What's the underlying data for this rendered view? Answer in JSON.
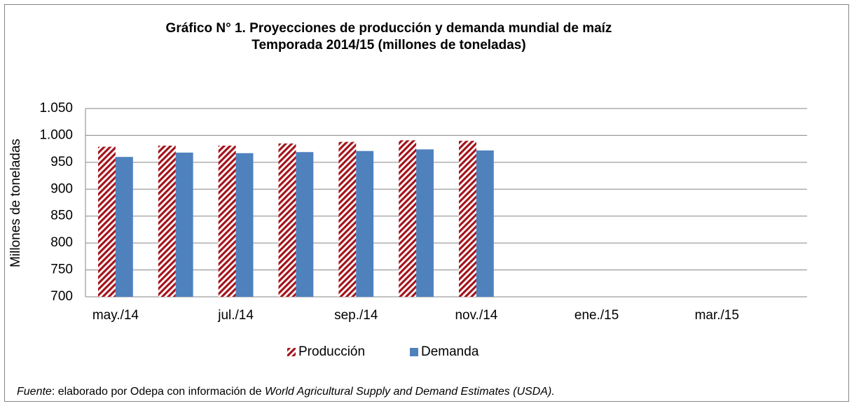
{
  "chart_data": {
    "type": "bar",
    "title": "Gráfico N° 1. Proyecciones de producción y demanda mundial de maíz",
    "subtitle": "Temporada 2014/15 (millones de toneladas)",
    "y_label": "Millones de toneladas",
    "categories": [
      "may./14",
      null,
      "jul./14",
      null,
      "sep./14",
      null,
      "nov./14",
      null,
      "ene./15",
      null,
      "mar./15",
      null
    ],
    "series": [
      {
        "name": "Producción",
        "color": "#a3141c",
        "pattern": "diagonal-stripes",
        "values": [
          979,
          981,
          981,
          985,
          988,
          991,
          990,
          null,
          null,
          null,
          null,
          null
        ]
      },
      {
        "name": "Demanda",
        "color": "#4f81bd",
        "values": [
          960,
          968,
          967,
          969,
          971,
          974,
          972,
          null,
          null,
          null,
          null,
          null
        ]
      }
    ],
    "ylim": [
      700,
      1050
    ],
    "yticks": [
      700,
      750,
      800,
      850,
      900,
      950,
      {
        "value": 1000,
        "label": "1.000"
      },
      {
        "value": 1050,
        "label": "1.050"
      }
    ],
    "grid": true,
    "legend": "bottom",
    "source_parts": [
      "Fuente",
      ": elaborado por Odepa con información de ",
      "World Agricultural Supply and Demand Estimates  (USDA)."
    ]
  }
}
